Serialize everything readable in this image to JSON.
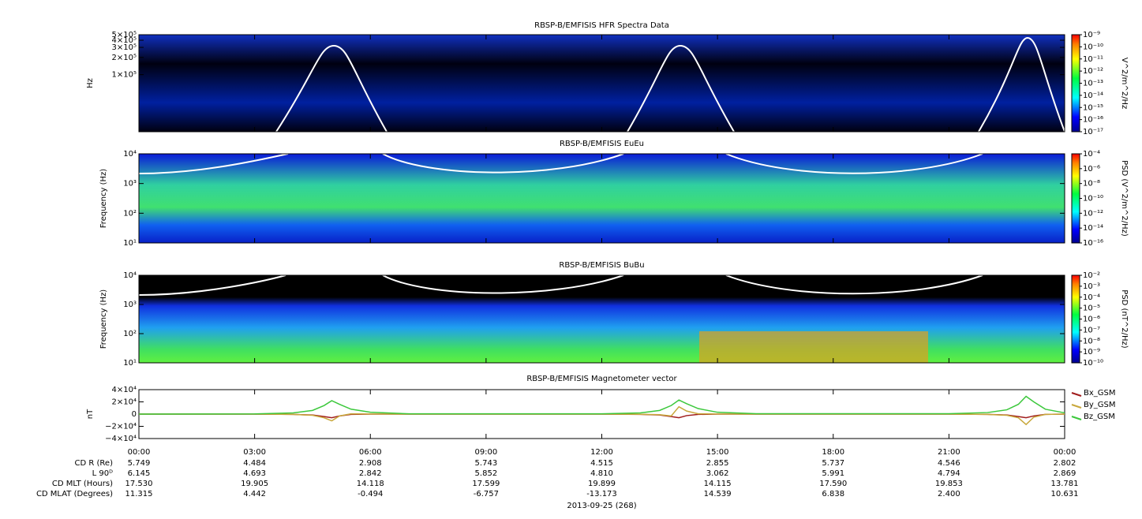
{
  "chart_data": [
    {
      "type": "spectrogram",
      "title": "RBSP-B/EMFISIS  HFR Spectra Data",
      "ylabel": "Hz",
      "log_y": true,
      "ylim": [
        10000,
        500000
      ],
      "yticks": [
        {
          "value": 500000,
          "label": "5×10⁵"
        },
        {
          "value": 400000,
          "label": "4×10⁵"
        },
        {
          "value": 300000,
          "label": "3×10⁵"
        },
        {
          "value": 200000,
          "label": "2×10⁵"
        },
        {
          "value": 100000,
          "label": "1×10⁵"
        }
      ],
      "colorbar": {
        "label": "V^2/m^2/Hz",
        "lim": [
          1e-17,
          1e-09
        ],
        "ticks": [
          {
            "value": 1e-09,
            "label": "10⁻⁹"
          },
          {
            "value": 1e-10,
            "label": "10⁻¹⁰"
          },
          {
            "value": 1e-11,
            "label": "10⁻¹¹"
          },
          {
            "value": 1e-12,
            "label": "10⁻¹²"
          },
          {
            "value": 1e-13,
            "label": "10⁻¹³"
          },
          {
            "value": 1e-14,
            "label": "10⁻¹⁴"
          },
          {
            "value": 1e-15,
            "label": "10⁻¹⁵"
          },
          {
            "value": 1e-16,
            "label": "10⁻¹⁶"
          },
          {
            "value": 1e-17,
            "label": "10⁻¹⁷"
          }
        ]
      }
    },
    {
      "type": "spectrogram",
      "title": "RBSP-B/EMFISIS  EuEu",
      "ylabel": "Frequency (Hz)",
      "log_y": true,
      "ylim": [
        10,
        10000
      ],
      "yticks": [
        {
          "value": 10000,
          "label": "10⁴"
        },
        {
          "value": 1000,
          "label": "10³"
        },
        {
          "value": 100,
          "label": "10²"
        },
        {
          "value": 10,
          "label": "10¹"
        }
      ],
      "colorbar": {
        "label": "PSD (V^2/m^2/Hz)",
        "lim": [
          1e-16,
          0.0001
        ],
        "ticks": [
          {
            "value": 0.0001,
            "label": "10⁻⁴"
          },
          {
            "value": 1e-06,
            "label": "10⁻⁶"
          },
          {
            "value": 1e-08,
            "label": "10⁻⁸"
          },
          {
            "value": 1e-10,
            "label": "10⁻¹⁰"
          },
          {
            "value": 1e-12,
            "label": "10⁻¹²"
          },
          {
            "value": 1e-14,
            "label": "10⁻¹⁴"
          },
          {
            "value": 1e-16,
            "label": "10⁻¹⁶"
          }
        ]
      }
    },
    {
      "type": "spectrogram",
      "title": "RBSP-B/EMFISIS  BuBu",
      "ylabel": "Frequency (Hz)",
      "log_y": true,
      "ylim": [
        10,
        10000
      ],
      "yticks": [
        {
          "value": 10000,
          "label": "10⁴"
        },
        {
          "value": 1000,
          "label": "10³"
        },
        {
          "value": 100,
          "label": "10²"
        },
        {
          "value": 10,
          "label": "10¹"
        }
      ],
      "colorbar": {
        "label": "PSD (nT^2/Hz)",
        "lim": [
          1e-10,
          0.01
        ],
        "ticks": [
          {
            "value": 0.01,
            "label": "10⁻²"
          },
          {
            "value": 0.001,
            "label": "10⁻³"
          },
          {
            "value": 0.0001,
            "label": "10⁻⁴"
          },
          {
            "value": 1e-05,
            "label": "10⁻⁵"
          },
          {
            "value": 1e-06,
            "label": "10⁻⁶"
          },
          {
            "value": 1e-07,
            "label": "10⁻⁷"
          },
          {
            "value": 1e-08,
            "label": "10⁻⁸"
          },
          {
            "value": 1e-09,
            "label": "10⁻⁹"
          },
          {
            "value": 1e-10,
            "label": "10⁻¹⁰"
          }
        ]
      }
    },
    {
      "type": "line",
      "title": "RBSP-B/EMFISIS  Magnetometer vector",
      "ylabel": "nT",
      "xlabel": "2013-09-25 (268)",
      "xlim": [
        0,
        24
      ],
      "xticks": [
        {
          "value": 0,
          "label": "00:00"
        },
        {
          "value": 3,
          "label": "03:00"
        },
        {
          "value": 6,
          "label": "06:00"
        },
        {
          "value": 9,
          "label": "09:00"
        },
        {
          "value": 12,
          "label": "12:00"
        },
        {
          "value": 15,
          "label": "15:00"
        },
        {
          "value": 18,
          "label": "18:00"
        },
        {
          "value": 21,
          "label": "21:00"
        },
        {
          "value": 24,
          "label": "00:00"
        }
      ],
      "ylim": [
        -40000,
        40000
      ],
      "yticks": [
        {
          "value": 40000,
          "label": "4×10⁴"
        },
        {
          "value": 20000,
          "label": "2×10⁴"
        },
        0,
        {
          "value": -20000,
          "label": "−2×10⁴"
        },
        {
          "value": -40000,
          "label": "−4×10⁴"
        }
      ],
      "x": [
        0,
        3,
        4,
        4.5,
        4.8,
        5,
        5.2,
        5.5,
        6,
        7,
        12,
        13,
        13.5,
        13.8,
        14,
        14.2,
        14.5,
        15,
        16,
        21,
        22,
        22.5,
        22.8,
        23,
        23.2,
        23.5,
        24
      ],
      "series": [
        {
          "name": "Bx_GSM",
          "color": "#a01c1c",
          "values": [
            0,
            0,
            -500,
            -1500,
            -4000,
            -6000,
            -3000,
            -500,
            0,
            0,
            0,
            -500,
            -1500,
            -4000,
            -6000,
            -2500,
            -500,
            0,
            0,
            0,
            -500,
            -1500,
            -4000,
            -6000,
            -3000,
            -500,
            0
          ]
        },
        {
          "name": "By_GSM",
          "color": "#c8a83c",
          "values": [
            0,
            0,
            -500,
            -2000,
            -6000,
            -11000,
            -3000,
            500,
            200,
            0,
            0,
            -300,
            -1000,
            -3000,
            12000,
            5000,
            500,
            100,
            0,
            0,
            -500,
            -2000,
            -6000,
            -17000,
            -5000,
            -500,
            0
          ]
        },
        {
          "name": "Bz_GSM",
          "color": "#3cc83c",
          "values": [
            0,
            300,
            2000,
            6000,
            14000,
            22000,
            16000,
            8000,
            3000,
            500,
            500,
            2000,
            6000,
            14000,
            23000,
            17000,
            9000,
            3000,
            600,
            600,
            2500,
            7000,
            16000,
            29000,
            20000,
            8000,
            2000
          ]
        }
      ]
    }
  ],
  "ephemeris": {
    "rows": [
      {
        "label": "CD R (Re)",
        "values": [
          "5.749",
          "4.484",
          "2.908",
          "5.743",
          "4.515",
          "2.855",
          "5.737",
          "4.546",
          "2.802"
        ]
      },
      {
        "label": "L 90ᴰ",
        "values": [
          "6.145",
          "4.693",
          "2.842",
          "5.852",
          "4.810",
          "3.062",
          "5.991",
          "4.794",
          "2.869"
        ]
      },
      {
        "label": "CD MLT (Hours)",
        "values": [
          "17.530",
          "19.905",
          "14.118",
          "17.599",
          "19.899",
          "14.115",
          "17.590",
          "19.853",
          "13.781"
        ]
      },
      {
        "label": "CD MLAT (Degrees)",
        "values": [
          "11.315",
          "4.442",
          "-0.494",
          "-6.757",
          "-13.173",
          "14.539",
          "6.838",
          "2.400",
          "10.631"
        ]
      }
    ]
  }
}
